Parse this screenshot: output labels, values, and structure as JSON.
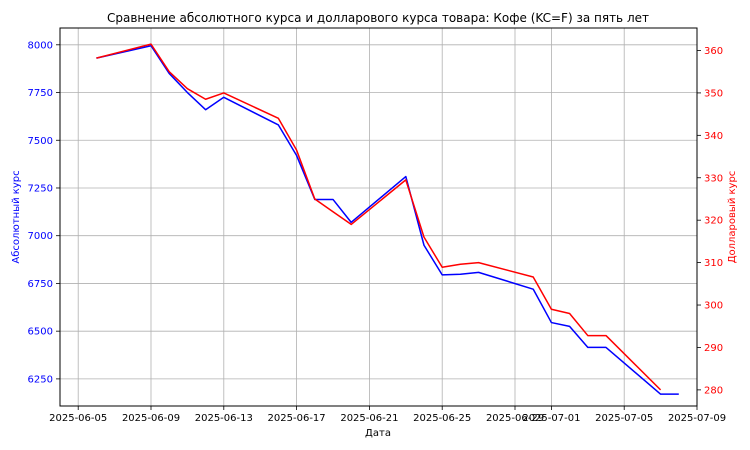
{
  "chart_data": {
    "type": "line",
    "title": "Сравнение абсолютного курса и долларового курса товара: Кофе (KC=F) за пять лет",
    "xlabel": "Дата",
    "ylabel_left": "Абсолютный курс",
    "ylabel_right": "Долларовый курс",
    "x_ticks": [
      "2025-06-05",
      "2025-06-09",
      "2025-06-13",
      "2025-06-17",
      "2025-06-21",
      "2025-06-25",
      "2025-06-29",
      "2025-07-01",
      "2025-07-05",
      "2025-07-09"
    ],
    "left_ticks": [
      6250,
      6500,
      6750,
      7000,
      7250,
      7500,
      7750,
      8000
    ],
    "right_ticks": [
      280,
      290,
      300,
      310,
      320,
      330,
      340,
      350,
      360
    ],
    "xlim": [
      "2025-06-04",
      "2025-07-09"
    ],
    "ylim_left": [
      6108,
      8088
    ],
    "ylim_right": [
      276.2,
      365.3
    ],
    "grid": true,
    "colors": {
      "left_axis": "#0000ff",
      "right_axis": "#ff0000"
    },
    "series": [
      {
        "axis": "left",
        "color": "#0000ff",
        "x": [
          "2025-06-06",
          "2025-06-09",
          "2025-06-10",
          "2025-06-11",
          "2025-06-12",
          "2025-06-13",
          "2025-06-16",
          "2025-06-17",
          "2025-06-18",
          "2025-06-19",
          "2025-06-20",
          "2025-06-23",
          "2025-06-24",
          "2025-06-25",
          "2025-06-26",
          "2025-06-27",
          "2025-06-30",
          "2025-07-01",
          "2025-07-02",
          "2025-07-03",
          "2025-07-04",
          "2025-07-07",
          "2025-07-08"
        ],
        "values": [
          7930,
          7995,
          7850,
          7750,
          7660,
          7725,
          7580,
          7420,
          7190,
          7190,
          7070,
          7310,
          6950,
          6795,
          6798,
          6808,
          6720,
          6545,
          6525,
          6415,
          6415,
          6170,
          6170
        ]
      },
      {
        "axis": "right",
        "color": "#ff0000",
        "x": [
          "2025-06-06",
          "2025-06-09",
          "2025-06-10",
          "2025-06-11",
          "2025-06-12",
          "2025-06-13",
          "2025-06-16",
          "2025-06-17",
          "2025-06-18",
          "2025-06-19",
          "2025-06-20",
          "2025-06-23",
          "2025-06-24",
          "2025-06-25",
          "2025-06-26",
          "2025-06-27",
          "2025-06-30",
          "2025-07-01",
          "2025-07-02",
          "2025-07-03",
          "2025-07-04",
          "2025-07-07"
        ],
        "values": [
          358.2,
          361.5,
          355.0,
          351.0,
          348.5,
          350.0,
          344.0,
          336.5,
          325.0,
          322.0,
          319.0,
          329.5,
          316.0,
          308.9,
          309.6,
          310.0,
          306.6,
          299.0,
          298.0,
          292.8,
          292.8,
          280.0
        ]
      }
    ]
  }
}
